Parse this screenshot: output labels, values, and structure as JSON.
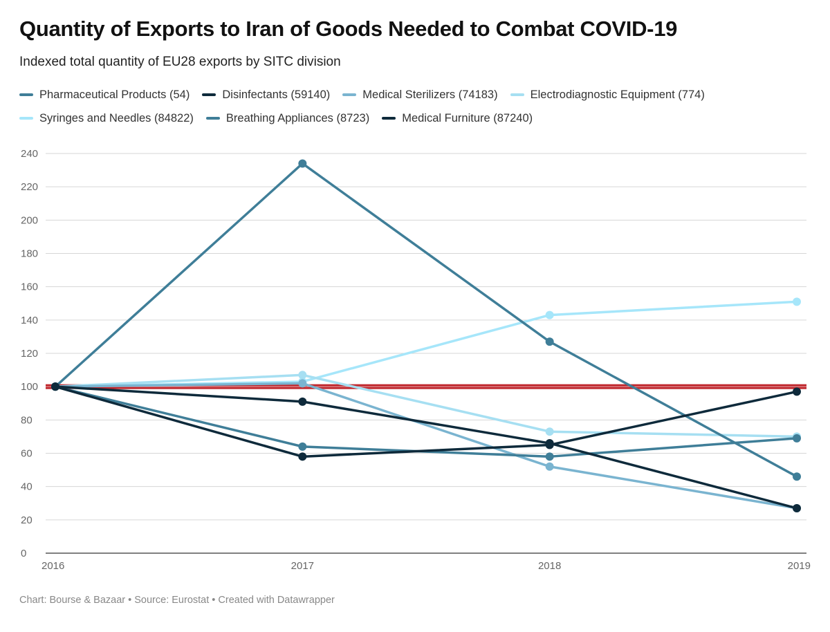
{
  "title": "Quantity of Exports to Iran of Goods Needed to Combat COVID-19",
  "subtitle": "Indexed total quantity of EU28 exports by SITC division",
  "footer": "Chart: Bourse & Bazaar • Source: Eurostat • Created with Datawrapper",
  "chart_data": {
    "type": "line",
    "x": [
      "2016",
      "2017",
      "2018",
      "2019"
    ],
    "ylim": [
      0,
      240
    ],
    "yticks": [
      "0",
      "20",
      "40",
      "60",
      "80",
      "100",
      "120",
      "140",
      "160",
      "180",
      "200",
      "220",
      "240"
    ],
    "grid": true,
    "legend_position": "top",
    "reference_line": {
      "value": 100,
      "color": "#c0272d"
    },
    "series": [
      {
        "name": "Pharmaceutical Products (54)",
        "color": "#3f7e98",
        "values": [
          100,
          64,
          58,
          69
        ]
      },
      {
        "name": "Disinfectants (59140)",
        "color": "#0e2a3b",
        "values": [
          100,
          91,
          66,
          27
        ]
      },
      {
        "name": "Medical Sterilizers (74183)",
        "color": "#7ab4d0",
        "values": [
          100,
          102,
          52,
          27
        ]
      },
      {
        "name": "Electrodiagnostic Equipment (774)",
        "color": "#a6dff2",
        "values": [
          100,
          107,
          73,
          70
        ]
      },
      {
        "name": "Syringes and Needles (84822)",
        "color": "#a6e6fa",
        "values": [
          100,
          103,
          143,
          151
        ]
      },
      {
        "name": "Breathing Appliances (8723)",
        "color": "#3f7e98",
        "values": [
          100,
          234,
          127,
          46
        ]
      },
      {
        "name": "Medical Furniture (87240)",
        "color": "#0e2a3b",
        "values": [
          100,
          58,
          65,
          97
        ]
      }
    ]
  }
}
